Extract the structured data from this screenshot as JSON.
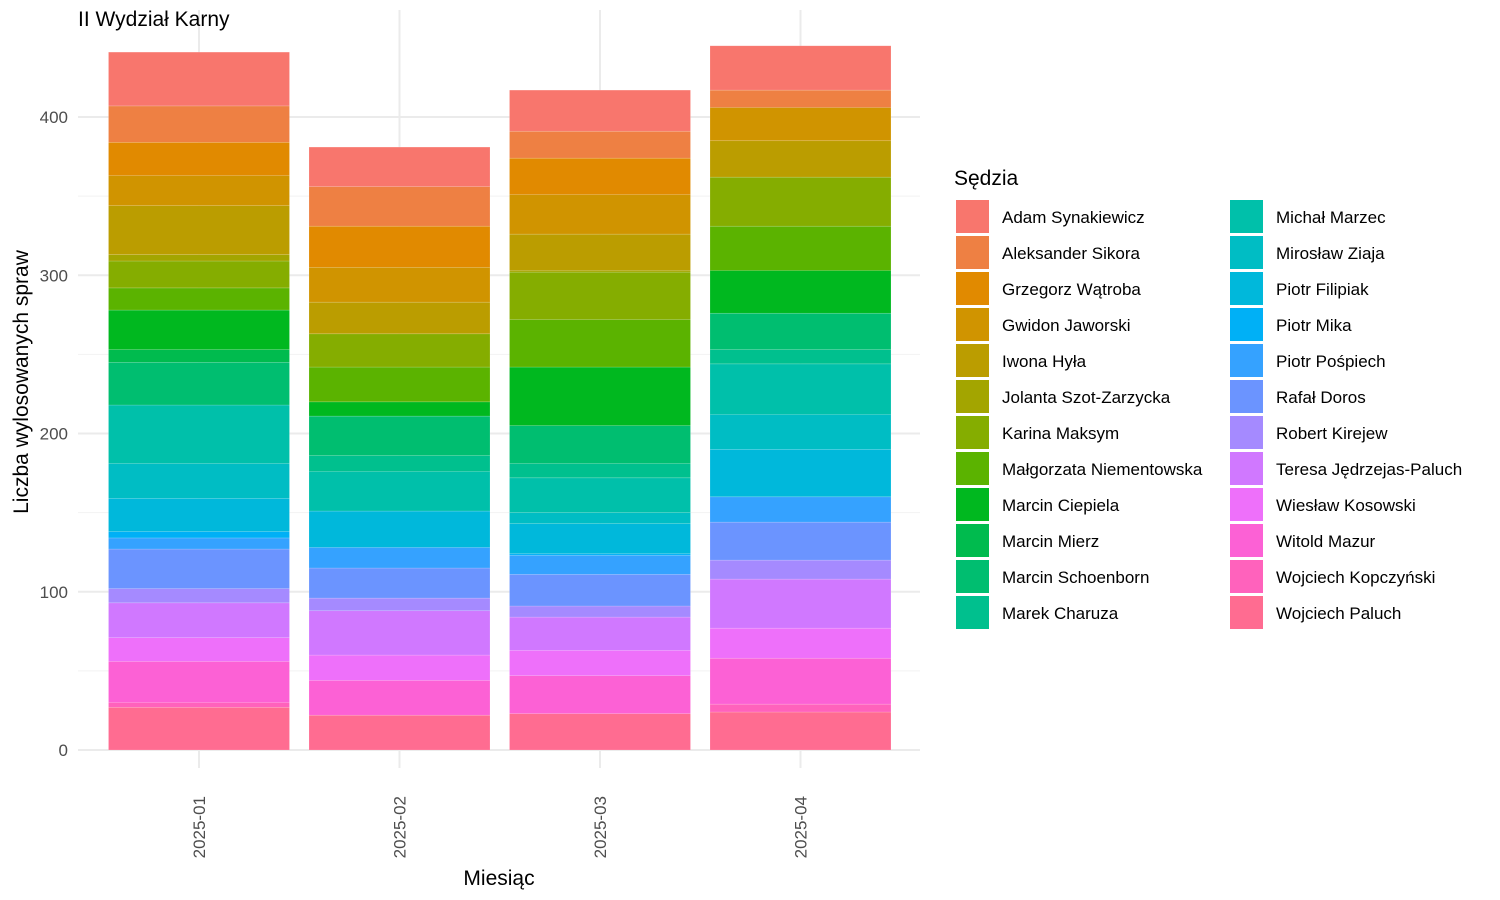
{
  "chart_data": {
    "type": "bar",
    "stacked": true,
    "title": "II Wydział Karny",
    "xlabel": "Miesiąc",
    "ylabel": "Liczba wylosowanych spraw",
    "categories": [
      "2025-01",
      "2025-02",
      "2025-03",
      "2025-04"
    ],
    "ylim": [
      0,
      445
    ],
    "yticks": [
      0,
      100,
      200,
      300,
      400
    ],
    "grid": true,
    "legend": {
      "title": "Sędzia",
      "position": "right",
      "columns": 2
    },
    "series": [
      {
        "name": "Adam Synakiewicz",
        "color": "#F8766D",
        "values": [
          34,
          25,
          26,
          28
        ]
      },
      {
        "name": "Aleksander Sikora",
        "color": "#EE8043",
        "values": [
          23,
          25,
          17,
          11
        ]
      },
      {
        "name": "Grzegorz Wątroba",
        "color": "#E18A00",
        "values": [
          21,
          26,
          23,
          0
        ]
      },
      {
        "name": "Gwidon Jaworski",
        "color": "#D09400",
        "values": [
          19,
          22,
          25,
          21
        ]
      },
      {
        "name": "Iwona Hyła",
        "color": "#BB9D00",
        "values": [
          31,
          20,
          23,
          23
        ]
      },
      {
        "name": "Jolanta Szot-Zarzycka",
        "color": "#A3A500",
        "values": [
          4,
          0,
          1,
          0
        ]
      },
      {
        "name": "Karina Maksym",
        "color": "#85AD00",
        "values": [
          17,
          21,
          30,
          31
        ]
      },
      {
        "name": "Małgorzata Niementowska",
        "color": "#5BB300",
        "values": [
          14,
          22,
          30,
          28
        ]
      },
      {
        "name": "Marcin Ciepiela",
        "color": "#00B81F",
        "values": [
          25,
          9,
          37,
          27
        ]
      },
      {
        "name": "Marcin Mierz",
        "color": "#00BB4E",
        "values": [
          8,
          0,
          0,
          0
        ]
      },
      {
        "name": "Marcin Schoenborn",
        "color": "#00BE70",
        "values": [
          27,
          25,
          24,
          23
        ]
      },
      {
        "name": "Marek Charuza",
        "color": "#00C08E",
        "values": [
          0,
          10,
          9,
          9
        ]
      },
      {
        "name": "Michał Marzec",
        "color": "#00C0AA",
        "values": [
          37,
          25,
          22,
          32
        ]
      },
      {
        "name": "Mirosław Ziaja",
        "color": "#00BDC4",
        "values": [
          22,
          0,
          7,
          22
        ]
      },
      {
        "name": "Piotr Filipiak",
        "color": "#00B8DB",
        "values": [
          21,
          23,
          19,
          30
        ]
      },
      {
        "name": "Piotr Mika",
        "color": "#00B0F6",
        "values": [
          4,
          0,
          1,
          0
        ]
      },
      {
        "name": "Piotr Pośpiech",
        "color": "#35A2FF",
        "values": [
          7,
          13,
          12,
          16
        ]
      },
      {
        "name": "Rafał Doros",
        "color": "#6B94FF",
        "values": [
          25,
          19,
          20,
          24
        ]
      },
      {
        "name": "Robert Kirejew",
        "color": "#A58AFF",
        "values": [
          9,
          8,
          7,
          12
        ]
      },
      {
        "name": "Teresa Jędrzejas-Paluch",
        "color": "#D078FF",
        "values": [
          22,
          28,
          21,
          31
        ]
      },
      {
        "name": "Wiesław Kosowski",
        "color": "#EE70FA",
        "values": [
          15,
          16,
          16,
          19
        ]
      },
      {
        "name": "Witold Mazur",
        "color": "#FC61D5",
        "values": [
          26,
          22,
          24,
          29
        ]
      },
      {
        "name": "Wojciech Kopczyński",
        "color": "#FF62BC",
        "values": [
          3,
          0,
          0,
          5
        ]
      },
      {
        "name": "Wojciech Paluch",
        "color": "#FF6C91",
        "values": [
          27,
          22,
          23,
          24
        ]
      }
    ]
  }
}
